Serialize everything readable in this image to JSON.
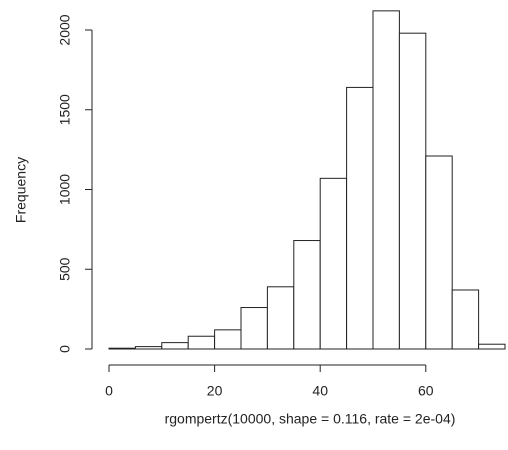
{
  "chart_data": {
    "type": "histogram",
    "x_label": "rgompertz(10000, shape = 0.116, rate = 2e-04)",
    "y_label": "Frequency",
    "bins": [
      0,
      5,
      10,
      15,
      20,
      25,
      30,
      35,
      40,
      45,
      50,
      55,
      60,
      65,
      70,
      75
    ],
    "counts": [
      5,
      15,
      40,
      80,
      120,
      260,
      390,
      680,
      1070,
      1640,
      2120,
      1980,
      1210,
      370,
      30
    ],
    "color": "#ffffff",
    "xlim": [
      0,
      75
    ],
    "xticks": [
      0,
      20,
      40,
      60
    ],
    "ylim": [
      0,
      2000
    ],
    "yticks": [
      0,
      500,
      1000,
      1500,
      2000
    ]
  }
}
